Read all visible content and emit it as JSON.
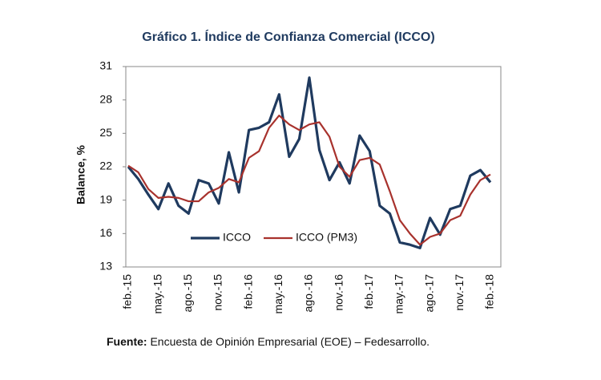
{
  "chart_data": {
    "type": "line",
    "title": "Gráfico 1. Índice de Confianza Comercial (ICCO)",
    "y_label": "Balance, %",
    "source_label": "Fuente:",
    "source": "Encuesta de Opinión Empresarial (EOE) – Fedesarrollo.",
    "categories": [
      "feb.-15",
      null,
      null,
      "may.-15",
      null,
      null,
      "ago.-15",
      null,
      null,
      "nov.-15",
      null,
      null,
      "feb.-16",
      null,
      null,
      "may.-16",
      null,
      null,
      "ago.-16",
      null,
      null,
      "nov.-16",
      null,
      null,
      "feb.-17",
      null,
      null,
      "may.-17",
      null,
      null,
      "ago.-17",
      null,
      null,
      "nov.-17",
      null,
      null,
      "feb.-18"
    ],
    "series": [
      {
        "name": "ICCO",
        "color": "#1f3a5f",
        "values": [
          22.0,
          20.9,
          19.5,
          18.2,
          20.5,
          18.5,
          17.8,
          20.8,
          20.5,
          18.7,
          23.3,
          19.7,
          25.3,
          25.5,
          26.0,
          28.5,
          22.9,
          24.5,
          30.0,
          23.5,
          20.8,
          22.4,
          20.5,
          24.8,
          23.4,
          18.5,
          17.8,
          15.2,
          15.0,
          14.7,
          17.4,
          15.9,
          18.2,
          18.5,
          21.2,
          21.7,
          20.6
        ]
      },
      {
        "name": "ICCO (PM3)",
        "color": "#a8322d",
        "values": [
          22.1,
          21.5,
          20.0,
          19.2,
          19.3,
          19.2,
          18.9,
          18.9,
          19.7,
          20.1,
          20.9,
          20.6,
          22.8,
          23.4,
          25.5,
          26.6,
          25.8,
          25.3,
          25.8,
          26.0,
          24.7,
          22.0,
          21.1,
          22.6,
          22.8,
          22.2,
          19.8,
          17.2,
          16.0,
          15.0,
          15.7,
          16.0,
          17.2,
          17.6,
          19.5,
          20.8,
          21.3
        ]
      }
    ],
    "ylim": [
      13,
      31
    ],
    "yticks": [
      13,
      16,
      19,
      22,
      25,
      28,
      31
    ],
    "grid": false
  }
}
